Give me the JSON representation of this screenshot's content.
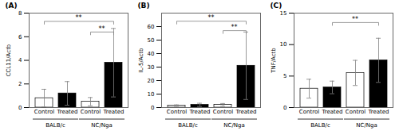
{
  "chart_data": [
    {
      "type": "bar",
      "panel_label": "(A)",
      "ylabel": "CCL11/Actb",
      "categories": [
        "Control",
        "Treated",
        "Control",
        "Treated"
      ],
      "values": [
        0.8,
        1.2,
        0.5,
        3.8
      ],
      "errors": [
        0.75,
        1.0,
        0.35,
        2.9
      ],
      "colors": [
        "white",
        "black",
        "white",
        "black"
      ],
      "ylim": [
        0,
        8
      ],
      "yticks": [
        0,
        2,
        4,
        6,
        8
      ],
      "group_labels": [
        "BALB/c",
        "NC/Nga"
      ],
      "brackets": [
        {
          "from": 0,
          "to": 3,
          "y": 7.3,
          "label": "**"
        },
        {
          "from": 2,
          "to": 3,
          "y": 6.4,
          "label": "**"
        }
      ]
    },
    {
      "type": "bar",
      "panel_label": "(B)",
      "ylabel": "IL-5/Actb",
      "categories": [
        "Control",
        "Treated",
        "Control",
        "Treated"
      ],
      "values": [
        1.5,
        2.0,
        2.0,
        31.0
      ],
      "errors": [
        0.5,
        1.2,
        1.0,
        25.0
      ],
      "colors": [
        "white",
        "black",
        "white",
        "black"
      ],
      "ylim": [
        0,
        70
      ],
      "yticks": [
        0,
        10,
        20,
        30,
        40,
        50,
        60
      ],
      "group_labels": [
        "BALB/c",
        "NC/Nga"
      ],
      "brackets": [
        {
          "from": 0,
          "to": 3,
          "y": 64,
          "label": "**"
        },
        {
          "from": 2,
          "to": 3,
          "y": 57,
          "label": "**"
        }
      ]
    },
    {
      "type": "bar",
      "panel_label": "(C)",
      "ylabel": "TNF/Actb",
      "categories": [
        "Control",
        "Treated",
        "Control",
        "Treated"
      ],
      "values": [
        3.0,
        3.2,
        5.5,
        7.5
      ],
      "errors": [
        1.5,
        1.0,
        2.0,
        3.5
      ],
      "colors": [
        "white",
        "black",
        "white",
        "black"
      ],
      "ylim": [
        0,
        15
      ],
      "yticks": [
        0,
        5,
        10,
        15
      ],
      "group_labels": [
        "BALB/c",
        "NC/Nga"
      ],
      "brackets": [
        {
          "from": 1,
          "to": 3,
          "y": 13.5,
          "label": "**"
        }
      ]
    }
  ]
}
